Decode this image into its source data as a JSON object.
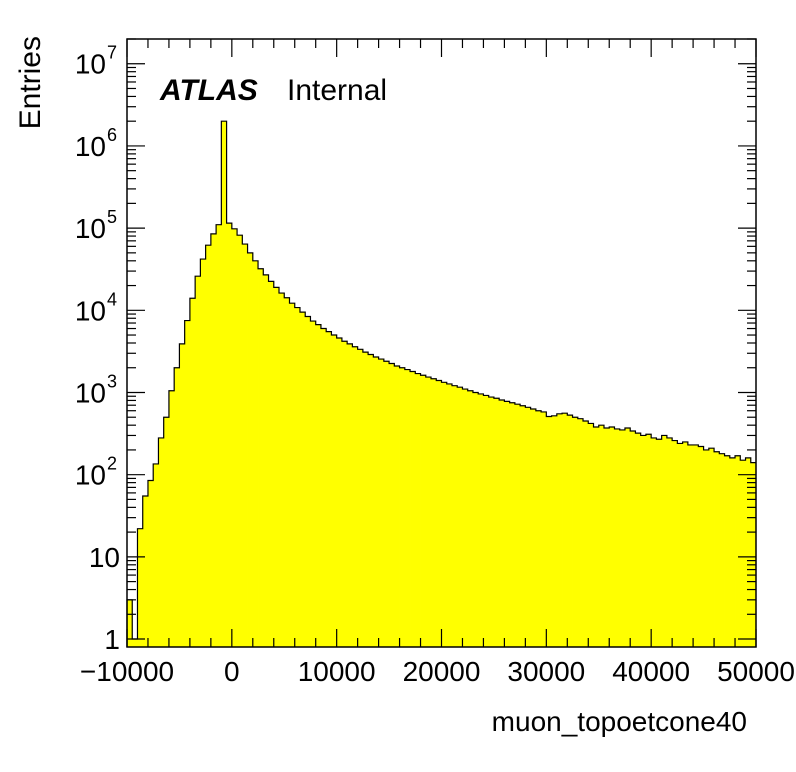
{
  "chart_data": {
    "type": "bar",
    "subtype": "histogram",
    "title": "",
    "xlabel": "muon_topoetcone40",
    "ylabel": "Entries",
    "xlim": [
      -10000,
      50000
    ],
    "ylim": [
      0.8,
      20000000
    ],
    "ylog": true,
    "grid": false,
    "label": {
      "experiment": "ATLAS",
      "status": "Internal"
    },
    "x_ticks": [
      "−10000",
      "0",
      "10000",
      "20000",
      "30000",
      "40000",
      "50000"
    ],
    "x_tick_values": [
      -10000,
      0,
      10000,
      20000,
      30000,
      40000,
      50000
    ],
    "y_ticks": [
      {
        "value": 1,
        "base": "1",
        "exp": ""
      },
      {
        "value": 10,
        "base": "10",
        "exp": ""
      },
      {
        "value": 100,
        "base": "10",
        "exp": "2"
      },
      {
        "value": 1000,
        "base": "10",
        "exp": "3"
      },
      {
        "value": 10000,
        "base": "10",
        "exp": "4"
      },
      {
        "value": 100000,
        "base": "10",
        "exp": "5"
      },
      {
        "value": 1000000,
        "base": "10",
        "exp": "6"
      },
      {
        "value": 10000000,
        "base": "10",
        "exp": "7"
      }
    ],
    "bin_width": 500,
    "x_start": -10000,
    "fill_color": "#ffff00",
    "line_color": "#000000",
    "values": [
      3,
      1,
      22,
      55,
      85,
      135,
      280,
      500,
      1050,
      2000,
      3900,
      7500,
      14000,
      26000,
      42000,
      62000,
      85000,
      110000,
      2000000,
      115000,
      98000,
      82000,
      64000,
      50000,
      40000,
      32000,
      27000,
      22500,
      19000,
      16200,
      14200,
      12200,
      10800,
      9500,
      8400,
      7400,
      6700,
      6000,
      5500,
      5000,
      4600,
      4200,
      3900,
      3600,
      3350,
      3100,
      2900,
      2700,
      2550,
      2400,
      2250,
      2100,
      2000,
      1900,
      1800,
      1700,
      1620,
      1540,
      1470,
      1400,
      1330,
      1270,
      1210,
      1160,
      1100,
      1050,
      1000,
      960,
      920,
      880,
      850,
      810,
      780,
      750,
      720,
      690,
      660,
      630,
      600,
      580,
      510,
      520,
      550,
      560,
      530,
      500,
      480,
      450,
      420,
      380,
      400,
      370,
      380,
      360,
      350,
      370,
      340,
      320,
      300,
      310,
      280,
      270,
      300,
      280,
      260,
      240,
      250,
      230,
      230,
      220,
      200,
      210,
      190,
      180,
      170,
      160,
      170,
      150,
      160,
      140
    ]
  }
}
